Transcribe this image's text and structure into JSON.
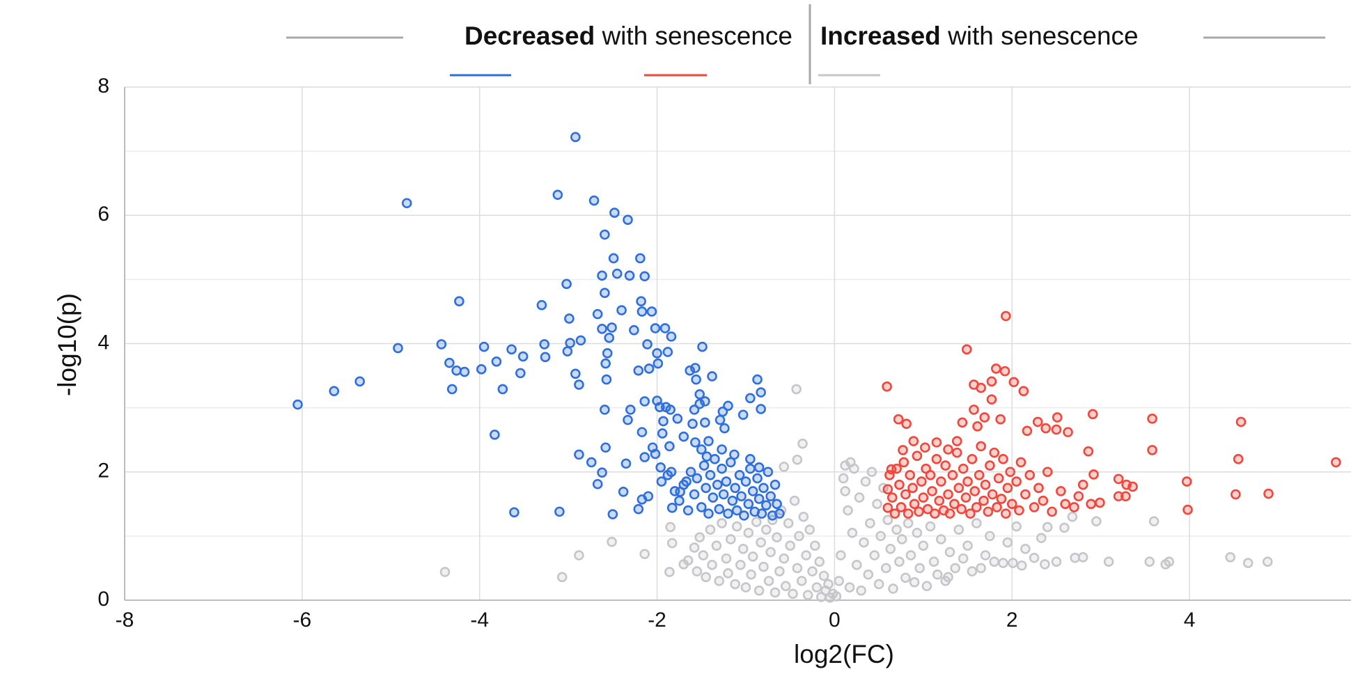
{
  "chart_data": {
    "type": "scatter",
    "header": {
      "decreased": "Decreased",
      "decreased_rest": "with senescence",
      "increased": "Increased",
      "increased_rest": "with senescence"
    },
    "x_label": "log2(FC)",
    "y_label": "-log10(p)",
    "xlim": [
      -8,
      5.82
    ],
    "ylim": [
      0,
      8
    ],
    "xticks": [
      -8,
      -6,
      -4,
      -2,
      0,
      2,
      4
    ],
    "yticks": [
      0,
      2,
      4,
      6,
      8
    ],
    "y_minor_ticks": [
      1,
      3,
      5,
      7
    ],
    "grid": true,
    "series": [
      {
        "color": "#c6c6ca",
        "x": [
          -0.43,
          -0.36,
          -0.42,
          -0.57,
          -4.39,
          -3.07,
          -2.88,
          -2.51,
          -2.14,
          -1.85,
          -1.83,
          -1.86,
          -1.7,
          -1.65,
          -1.58,
          -1.55,
          -1.52,
          -1.48,
          -1.45,
          -1.4,
          -1.38,
          -1.33,
          -1.3,
          -1.27,
          -1.22,
          -1.2,
          -1.17,
          -1.12,
          -1.1,
          -1.06,
          -1.03,
          -1.0,
          -0.97,
          -0.94,
          -0.92,
          -0.88,
          -0.85,
          -0.83,
          -0.8,
          -0.77,
          -0.74,
          -0.72,
          -0.7,
          -0.67,
          -0.65,
          -0.62,
          -0.6,
          -0.57,
          -0.55,
          -0.52,
          -0.5,
          -0.47,
          -0.45,
          -0.42,
          -0.4,
          -0.37,
          -0.35,
          -0.32,
          -0.3,
          -0.28,
          -0.25,
          -0.22,
          -0.2,
          -0.17,
          -0.15,
          -0.12,
          -0.1,
          -0.07,
          -0.05,
          -0.02,
          0.02,
          0.05,
          0.07,
          0.1,
          0.12,
          0.15,
          0.17,
          0.2,
          0.22,
          0.25,
          0.28,
          0.3,
          0.33,
          0.35,
          0.38,
          0.4,
          0.42,
          0.45,
          0.48,
          0.5,
          0.52,
          0.55,
          0.58,
          0.6,
          0.63,
          0.66,
          0.7,
          0.73,
          0.76,
          0.8,
          0.83,
          0.86,
          0.9,
          0.93,
          0.96,
          1.0,
          1.04,
          1.08,
          1.12,
          1.16,
          1.2,
          1.25,
          1.3,
          1.36,
          1.28,
          1.4,
          1.45,
          1.5,
          1.55,
          1.6,
          1.65,
          1.7,
          1.75,
          1.8,
          1.9,
          1.95,
          2.01,
          2.05,
          2.11,
          2.15,
          2.25,
          2.33,
          2.37,
          2.4,
          2.5,
          2.59,
          2.68,
          2.71,
          2.8,
          2.95,
          3.09,
          3.55,
          3.6,
          3.73,
          3.77,
          4.46,
          4.66,
          4.88,
          0.12,
          0.18
        ],
        "values": [
          3.29,
          2.44,
          2.19,
          2.08,
          0.44,
          0.36,
          0.7,
          0.91,
          0.72,
          1.14,
          0.89,
          0.44,
          0.56,
          0.62,
          0.82,
          0.45,
          0.98,
          0.7,
          0.36,
          1.1,
          0.55,
          0.85,
          0.3,
          1.2,
          0.65,
          0.42,
          0.95,
          0.25,
          1.15,
          0.55,
          0.8,
          0.2,
          1.05,
          0.4,
          0.68,
          1.22,
          0.15,
          0.9,
          0.52,
          1.1,
          0.3,
          0.75,
          1.25,
          0.12,
          0.98,
          0.45,
          1.4,
          0.65,
          0.22,
          1.2,
          0.85,
          0.1,
          1.55,
          0.5,
          1.0,
          0.3,
          1.3,
          0.7,
          0.08,
          1.1,
          0.45,
          0.85,
          0.2,
          0.6,
          0.05,
          0.38,
          0.15,
          0.25,
          0.04,
          0.1,
          0.06,
          0.3,
          0.7,
          1.9,
          2.1,
          1.4,
          0.2,
          1.05,
          2.05,
          0.55,
          1.6,
          0.15,
          0.9,
          1.85,
          0.4,
          1.2,
          2.0,
          0.7,
          1.5,
          0.25,
          1.0,
          1.75,
          0.5,
          1.25,
          0.8,
          0.18,
          1.1,
          0.6,
          0.95,
          0.35,
          1.2,
          0.7,
          0.28,
          1.05,
          0.5,
          0.85,
          0.22,
          1.15,
          0.6,
          0.4,
          0.95,
          0.3,
          0.75,
          0.5,
          0.36,
          1.1,
          0.65,
          0.85,
          0.45,
          1.2,
          0.5,
          0.7,
          1.0,
          0.6,
          0.58,
          0.9,
          0.58,
          1.15,
          0.54,
          0.8,
          0.66,
          0.97,
          0.56,
          1.14,
          0.6,
          1.13,
          1.3,
          0.66,
          0.67,
          1.23,
          0.6,
          0.6,
          1.23,
          0.56,
          0.6,
          0.67,
          0.58,
          0.6,
          1.7,
          2.15
        ]
      },
      {
        "color": "#2e6fdc",
        "x": [
          -6.05,
          -5.64,
          -5.35,
          -4.82,
          -4.92,
          -4.43,
          -4.34,
          -4.26,
          -4.23,
          -4.31,
          -4.17,
          -3.98,
          -3.95,
          -3.81,
          -3.74,
          -3.83,
          -3.64,
          -3.51,
          -3.54,
          -3.61,
          -3.3,
          -3.27,
          -3.26,
          -3.12,
          -3.02,
          -2.99,
          -2.98,
          -3.01,
          -2.92,
          -2.92,
          -2.88,
          -2.86,
          -3.1,
          -2.88,
          -2.71,
          -2.67,
          -2.62,
          -2.59,
          -2.59,
          -2.62,
          -2.58,
          -2.57,
          -2.59,
          -2.56,
          -2.54,
          -2.51,
          -2.49,
          -2.48,
          -2.4,
          -2.45,
          -2.33,
          -2.31,
          -2.26,
          -2.3,
          -2.33,
          -2.35,
          -2.38,
          -2.5,
          -2.58,
          -2.62,
          -2.67,
          -2.74,
          -2.19,
          -2.18,
          -2.17,
          -2.14,
          -2.21,
          -2.11,
          -2.09,
          -2.06,
          -2.14,
          -2.02,
          -2.0,
          -1.91,
          -1.84,
          -1.99,
          -1.88,
          -2.17,
          -2.14,
          -2.0,
          -1.97,
          -1.93,
          -1.9,
          -1.85,
          -1.86,
          -1.94,
          -2.05,
          -2.02,
          -1.96,
          -1.84,
          -2.17,
          -2.1,
          -2.21,
          -1.77,
          -1.7,
          -1.63,
          -1.57,
          -1.56,
          -1.52,
          -1.46,
          -1.49,
          -1.38,
          -1.58,
          -1.52,
          -1.46,
          -1.6,
          -1.57,
          -1.5,
          -1.42,
          -1.67,
          -1.74,
          -1.83,
          -1.44,
          -1.29,
          -1.26,
          -1.2,
          -1.24,
          -1.13,
          -0.87,
          -0.95,
          -0.83,
          -0.83,
          -1.03,
          -1.75,
          -1.7,
          -1.65,
          -1.62,
          -1.58,
          -1.55,
          -1.5,
          -1.47,
          -1.45,
          -1.42,
          -1.4,
          -1.37,
          -1.35,
          -1.32,
          -1.3,
          -1.27,
          -1.25,
          -1.22,
          -1.2,
          -1.17,
          -1.15,
          -1.12,
          -1.1,
          -1.07,
          -1.05,
          -1.02,
          -1.0,
          -0.97,
          -0.95,
          -0.92,
          -0.9,
          -0.87,
          -0.85,
          -0.82,
          -0.8,
          -0.77,
          -0.75,
          -0.72,
          -0.7,
          -0.67,
          -0.65,
          -0.62,
          -1.95,
          -1.88,
          -1.8,
          -0.85,
          -0.95,
          -1.27
        ],
        "values": [
          3.05,
          3.26,
          3.41,
          6.19,
          3.93,
          3.99,
          3.7,
          3.58,
          4.66,
          3.29,
          3.56,
          3.6,
          3.95,
          3.72,
          3.29,
          2.58,
          3.91,
          3.8,
          3.54,
          1.37,
          4.6,
          3.99,
          3.79,
          6.32,
          4.93,
          4.39,
          4.01,
          3.88,
          7.22,
          3.53,
          3.36,
          4.05,
          1.38,
          2.27,
          6.23,
          4.46,
          5.06,
          5.7,
          4.79,
          4.23,
          3.69,
          3.44,
          2.97,
          3.85,
          4.09,
          4.25,
          5.33,
          6.04,
          4.52,
          5.09,
          5.93,
          5.06,
          4.21,
          2.97,
          2.81,
          2.13,
          1.69,
          1.34,
          2.38,
          1.99,
          1.81,
          2.15,
          5.33,
          4.66,
          4.5,
          5.05,
          3.58,
          3.99,
          3.61,
          4.5,
          3.1,
          4.24,
          3.85,
          4.24,
          4.11,
          3.69,
          3.87,
          2.62,
          2.23,
          3.11,
          3.01,
          2.79,
          3.01,
          2.97,
          2.4,
          2.6,
          2.38,
          2.28,
          2.07,
          2.0,
          1.57,
          1.62,
          1.42,
          2.83,
          2.55,
          3.58,
          3.62,
          3.44,
          3.21,
          3.1,
          3.95,
          3.49,
          2.97,
          3.06,
          2.77,
          2.75,
          2.46,
          2.35,
          2.48,
          1.85,
          1.69,
          1.44,
          2.24,
          2.81,
          2.94,
          3.03,
          2.68,
          2.27,
          3.44,
          3.15,
          3.24,
          2.98,
          2.89,
          1.55,
          1.8,
          1.4,
          2.0,
          1.65,
          1.9,
          1.45,
          2.1,
          1.75,
          1.35,
          1.95,
          1.6,
          2.2,
          1.8,
          1.42,
          2.05,
          1.65,
          1.85,
          1.35,
          2.15,
          1.55,
          1.75,
          1.4,
          1.95,
          1.62,
          1.32,
          1.85,
          1.5,
          2.05,
          1.7,
          1.38,
          1.9,
          1.58,
          1.35,
          1.75,
          1.48,
          2.0,
          1.62,
          1.32,
          1.8,
          1.5,
          1.35,
          1.85,
          1.95,
          1.7,
          2.07,
          2.2,
          2.35
        ]
      },
      {
        "color": "#f0463c",
        "x": [
          0.59,
          1.93,
          1.49,
          1.82,
          1.92,
          1.77,
          1.57,
          1.65,
          2.02,
          2.13,
          1.77,
          1.57,
          0.72,
          0.81,
          1.44,
          1.61,
          1.69,
          1.87,
          2.17,
          2.29,
          2.38,
          2.51,
          2.5,
          2.63,
          2.91,
          3.58,
          4.58,
          3.58,
          2.86,
          4.55,
          5.65,
          3.97,
          3.2,
          3.29,
          3.36,
          2.92,
          4.52,
          4.89,
          3.98,
          3.2,
          3.28,
          2.99,
          2.89,
          2.8,
          2.75,
          0.89,
          1.02,
          1.15,
          1.28,
          1.38,
          0.77,
          0.64,
          0.6,
          0.6,
          0.62,
          0.65,
          0.68,
          0.7,
          0.73,
          0.75,
          0.78,
          0.8,
          0.83,
          0.85,
          0.88,
          0.9,
          0.93,
          0.95,
          0.98,
          1.0,
          1.03,
          1.05,
          1.08,
          1.1,
          1.13,
          1.15,
          1.18,
          1.2,
          1.23,
          1.25,
          1.28,
          1.3,
          1.33,
          1.35,
          1.38,
          1.4,
          1.43,
          1.45,
          1.48,
          1.5,
          1.53,
          1.55,
          1.58,
          1.6,
          1.63,
          1.65,
          1.68,
          1.7,
          1.73,
          1.75,
          1.78,
          1.8,
          1.83,
          1.85,
          1.88,
          1.9,
          1.93,
          1.95,
          1.98,
          2.0,
          2.05,
          2.08,
          2.1,
          2.15,
          2.2,
          2.25,
          2.3,
          2.35,
          2.4,
          2.45,
          2.55,
          2.6,
          2.7
        ],
        "values": [
          3.33,
          4.43,
          3.91,
          3.61,
          3.57,
          3.41,
          3.36,
          3.31,
          3.4,
          3.26,
          3.13,
          2.97,
          2.82,
          2.75,
          2.77,
          2.71,
          2.85,
          2.82,
          2.64,
          2.78,
          2.68,
          2.85,
          2.66,
          2.62,
          2.9,
          2.83,
          2.78,
          2.34,
          2.32,
          2.2,
          2.15,
          1.85,
          1.89,
          1.8,
          1.77,
          1.96,
          1.65,
          1.66,
          1.41,
          1.62,
          1.62,
          1.52,
          1.5,
          1.8,
          1.62,
          2.48,
          2.38,
          2.46,
          2.35,
          2.48,
          2.34,
          2.04,
          1.73,
          1.44,
          1.95,
          1.6,
          1.35,
          2.05,
          1.8,
          1.45,
          2.15,
          1.65,
          1.35,
          1.95,
          1.75,
          1.5,
          2.25,
          1.38,
          1.85,
          1.6,
          2.05,
          1.42,
          1.95,
          1.7,
          1.35,
          2.2,
          1.55,
          1.85,
          1.4,
          2.1,
          1.65,
          1.35,
          1.95,
          1.5,
          2.3,
          1.75,
          1.42,
          2.05,
          1.6,
          1.85,
          1.35,
          2.2,
          1.7,
          1.45,
          1.95,
          2.4,
          1.55,
          1.8,
          1.38,
          2.1,
          1.65,
          2.3,
          1.45,
          1.9,
          1.58,
          2.2,
          1.35,
          1.75,
          2.0,
          1.5,
          1.85,
          1.4,
          2.15,
          1.65,
          1.95,
          1.45,
          1.75,
          1.55,
          2.0,
          1.38,
          1.7,
          1.5,
          1.45
        ]
      }
    ]
  }
}
